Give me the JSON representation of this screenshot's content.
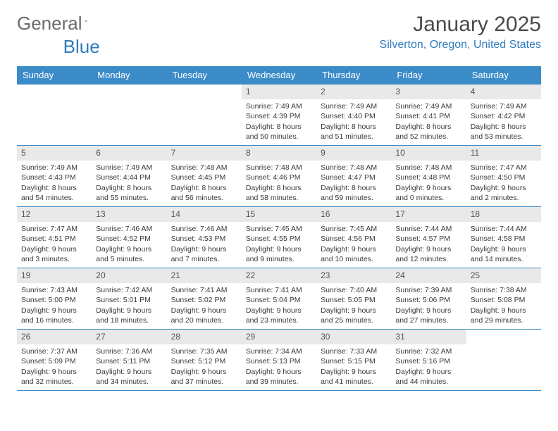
{
  "logo": {
    "word1": "General",
    "word2": "Blue"
  },
  "title": "January 2025",
  "location": "Silverton, Oregon, United States",
  "colors": {
    "header_bg": "#3b8bc9",
    "header_text": "#ffffff",
    "daynum_bg": "#e9e9e9",
    "accent": "#2f7bbf",
    "text": "#3a3a3a",
    "logo_gray": "#6b6b6b"
  },
  "dow": [
    "Sunday",
    "Monday",
    "Tuesday",
    "Wednesday",
    "Thursday",
    "Friday",
    "Saturday"
  ],
  "weeks": [
    [
      {
        "n": "",
        "sr": "",
        "ss": "",
        "dl1": "",
        "dl2": ""
      },
      {
        "n": "",
        "sr": "",
        "ss": "",
        "dl1": "",
        "dl2": ""
      },
      {
        "n": "",
        "sr": "",
        "ss": "",
        "dl1": "",
        "dl2": ""
      },
      {
        "n": "1",
        "sr": "Sunrise: 7:49 AM",
        "ss": "Sunset: 4:39 PM",
        "dl1": "Daylight: 8 hours",
        "dl2": "and 50 minutes."
      },
      {
        "n": "2",
        "sr": "Sunrise: 7:49 AM",
        "ss": "Sunset: 4:40 PM",
        "dl1": "Daylight: 8 hours",
        "dl2": "and 51 minutes."
      },
      {
        "n": "3",
        "sr": "Sunrise: 7:49 AM",
        "ss": "Sunset: 4:41 PM",
        "dl1": "Daylight: 8 hours",
        "dl2": "and 52 minutes."
      },
      {
        "n": "4",
        "sr": "Sunrise: 7:49 AM",
        "ss": "Sunset: 4:42 PM",
        "dl1": "Daylight: 8 hours",
        "dl2": "and 53 minutes."
      }
    ],
    [
      {
        "n": "5",
        "sr": "Sunrise: 7:49 AM",
        "ss": "Sunset: 4:43 PM",
        "dl1": "Daylight: 8 hours",
        "dl2": "and 54 minutes."
      },
      {
        "n": "6",
        "sr": "Sunrise: 7:49 AM",
        "ss": "Sunset: 4:44 PM",
        "dl1": "Daylight: 8 hours",
        "dl2": "and 55 minutes."
      },
      {
        "n": "7",
        "sr": "Sunrise: 7:48 AM",
        "ss": "Sunset: 4:45 PM",
        "dl1": "Daylight: 8 hours",
        "dl2": "and 56 minutes."
      },
      {
        "n": "8",
        "sr": "Sunrise: 7:48 AM",
        "ss": "Sunset: 4:46 PM",
        "dl1": "Daylight: 8 hours",
        "dl2": "and 58 minutes."
      },
      {
        "n": "9",
        "sr": "Sunrise: 7:48 AM",
        "ss": "Sunset: 4:47 PM",
        "dl1": "Daylight: 8 hours",
        "dl2": "and 59 minutes."
      },
      {
        "n": "10",
        "sr": "Sunrise: 7:48 AM",
        "ss": "Sunset: 4:48 PM",
        "dl1": "Daylight: 9 hours",
        "dl2": "and 0 minutes."
      },
      {
        "n": "11",
        "sr": "Sunrise: 7:47 AM",
        "ss": "Sunset: 4:50 PM",
        "dl1": "Daylight: 9 hours",
        "dl2": "and 2 minutes."
      }
    ],
    [
      {
        "n": "12",
        "sr": "Sunrise: 7:47 AM",
        "ss": "Sunset: 4:51 PM",
        "dl1": "Daylight: 9 hours",
        "dl2": "and 3 minutes."
      },
      {
        "n": "13",
        "sr": "Sunrise: 7:46 AM",
        "ss": "Sunset: 4:52 PM",
        "dl1": "Daylight: 9 hours",
        "dl2": "and 5 minutes."
      },
      {
        "n": "14",
        "sr": "Sunrise: 7:46 AM",
        "ss": "Sunset: 4:53 PM",
        "dl1": "Daylight: 9 hours",
        "dl2": "and 7 minutes."
      },
      {
        "n": "15",
        "sr": "Sunrise: 7:45 AM",
        "ss": "Sunset: 4:55 PM",
        "dl1": "Daylight: 9 hours",
        "dl2": "and 9 minutes."
      },
      {
        "n": "16",
        "sr": "Sunrise: 7:45 AM",
        "ss": "Sunset: 4:56 PM",
        "dl1": "Daylight: 9 hours",
        "dl2": "and 10 minutes."
      },
      {
        "n": "17",
        "sr": "Sunrise: 7:44 AM",
        "ss": "Sunset: 4:57 PM",
        "dl1": "Daylight: 9 hours",
        "dl2": "and 12 minutes."
      },
      {
        "n": "18",
        "sr": "Sunrise: 7:44 AM",
        "ss": "Sunset: 4:58 PM",
        "dl1": "Daylight: 9 hours",
        "dl2": "and 14 minutes."
      }
    ],
    [
      {
        "n": "19",
        "sr": "Sunrise: 7:43 AM",
        "ss": "Sunset: 5:00 PM",
        "dl1": "Daylight: 9 hours",
        "dl2": "and 16 minutes."
      },
      {
        "n": "20",
        "sr": "Sunrise: 7:42 AM",
        "ss": "Sunset: 5:01 PM",
        "dl1": "Daylight: 9 hours",
        "dl2": "and 18 minutes."
      },
      {
        "n": "21",
        "sr": "Sunrise: 7:41 AM",
        "ss": "Sunset: 5:02 PM",
        "dl1": "Daylight: 9 hours",
        "dl2": "and 20 minutes."
      },
      {
        "n": "22",
        "sr": "Sunrise: 7:41 AM",
        "ss": "Sunset: 5:04 PM",
        "dl1": "Daylight: 9 hours",
        "dl2": "and 23 minutes."
      },
      {
        "n": "23",
        "sr": "Sunrise: 7:40 AM",
        "ss": "Sunset: 5:05 PM",
        "dl1": "Daylight: 9 hours",
        "dl2": "and 25 minutes."
      },
      {
        "n": "24",
        "sr": "Sunrise: 7:39 AM",
        "ss": "Sunset: 5:06 PM",
        "dl1": "Daylight: 9 hours",
        "dl2": "and 27 minutes."
      },
      {
        "n": "25",
        "sr": "Sunrise: 7:38 AM",
        "ss": "Sunset: 5:08 PM",
        "dl1": "Daylight: 9 hours",
        "dl2": "and 29 minutes."
      }
    ],
    [
      {
        "n": "26",
        "sr": "Sunrise: 7:37 AM",
        "ss": "Sunset: 5:09 PM",
        "dl1": "Daylight: 9 hours",
        "dl2": "and 32 minutes."
      },
      {
        "n": "27",
        "sr": "Sunrise: 7:36 AM",
        "ss": "Sunset: 5:11 PM",
        "dl1": "Daylight: 9 hours",
        "dl2": "and 34 minutes."
      },
      {
        "n": "28",
        "sr": "Sunrise: 7:35 AM",
        "ss": "Sunset: 5:12 PM",
        "dl1": "Daylight: 9 hours",
        "dl2": "and 37 minutes."
      },
      {
        "n": "29",
        "sr": "Sunrise: 7:34 AM",
        "ss": "Sunset: 5:13 PM",
        "dl1": "Daylight: 9 hours",
        "dl2": "and 39 minutes."
      },
      {
        "n": "30",
        "sr": "Sunrise: 7:33 AM",
        "ss": "Sunset: 5:15 PM",
        "dl1": "Daylight: 9 hours",
        "dl2": "and 41 minutes."
      },
      {
        "n": "31",
        "sr": "Sunrise: 7:32 AM",
        "ss": "Sunset: 5:16 PM",
        "dl1": "Daylight: 9 hours",
        "dl2": "and 44 minutes."
      },
      {
        "n": "",
        "sr": "",
        "ss": "",
        "dl1": "",
        "dl2": ""
      }
    ]
  ]
}
